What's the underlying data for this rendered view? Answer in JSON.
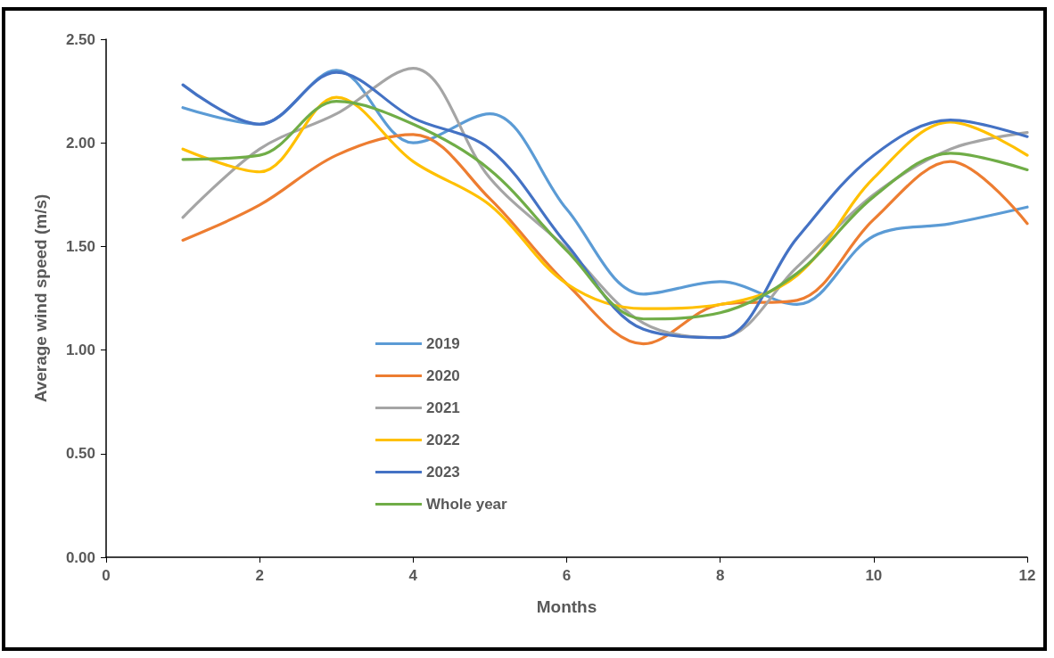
{
  "chart_data": {
    "type": "line",
    "xlabel": "Months",
    "ylabel": "Average wind speed (m/s)",
    "x": [
      1,
      2,
      3,
      4,
      5,
      6,
      7,
      8,
      9,
      10,
      11,
      12
    ],
    "series": [
      {
        "name": "2019",
        "color": "#5b9bd5",
        "values": [
          2.17,
          2.09,
          2.35,
          2.0,
          2.14,
          1.68,
          1.27,
          1.33,
          1.22,
          1.55,
          1.61,
          1.69
        ]
      },
      {
        "name": "2020",
        "color": "#ed7d31",
        "values": [
          1.53,
          1.7,
          1.94,
          2.04,
          1.73,
          1.32,
          1.03,
          1.22,
          1.24,
          1.63,
          1.91,
          1.61
        ]
      },
      {
        "name": "2021",
        "color": "#a5a5a5",
        "values": [
          1.64,
          1.97,
          2.14,
          2.36,
          1.83,
          1.49,
          1.13,
          1.06,
          1.4,
          1.75,
          1.97,
          2.05
        ]
      },
      {
        "name": "2022",
        "color": "#ffc000",
        "values": [
          1.97,
          1.86,
          2.22,
          1.91,
          1.7,
          1.32,
          1.2,
          1.22,
          1.36,
          1.83,
          2.1,
          1.94
        ]
      },
      {
        "name": "2023",
        "color": "#4472c4",
        "values": [
          2.28,
          2.09,
          2.34,
          2.12,
          1.97,
          1.51,
          1.1,
          1.06,
          1.54,
          1.94,
          2.11,
          2.03
        ]
      },
      {
        "name": "Whole year",
        "color": "#70ad47",
        "values": [
          1.92,
          1.94,
          2.2,
          2.09,
          1.87,
          1.48,
          1.15,
          1.18,
          1.37,
          1.74,
          1.95,
          1.87
        ]
      }
    ],
    "xlim": [
      0,
      12
    ],
    "xticks": [
      0,
      2,
      4,
      6,
      8,
      10,
      12
    ],
    "ylim": [
      0,
      2.5
    ],
    "yticks": [
      {
        "value": 0,
        "label": "0.00"
      },
      {
        "value": 0.5,
        "label": "0.50"
      },
      {
        "value": 1,
        "label": "1.00"
      },
      {
        "value": 1.5,
        "label": "1.50"
      },
      {
        "value": 2,
        "label": "2.00"
      },
      {
        "value": 2.5,
        "label": "2.50"
      }
    ],
    "grid": false,
    "legend": "bottom left",
    "marker": "none",
    "line_style": "solid"
  }
}
